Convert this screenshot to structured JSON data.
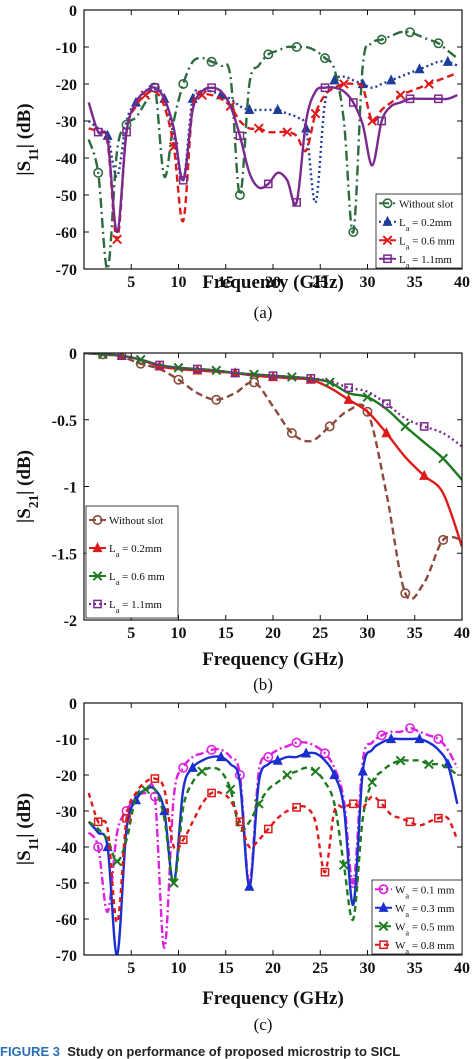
{
  "caption": {
    "label": "FIGURE 3",
    "text": "Study on performance of proposed microstrip to SICL"
  },
  "chart_data": [
    {
      "type": "line",
      "panel_label": "(a)",
      "xlabel": "Frequency (GHz)",
      "ylabel": "|S11| (dB)",
      "xlim": [
        0,
        40
      ],
      "ylim": [
        -70,
        0
      ],
      "xticks": [
        5,
        10,
        15,
        20,
        25,
        30,
        35,
        40
      ],
      "yticks": [
        0,
        -10,
        -20,
        -30,
        -40,
        -50,
        -60,
        -70
      ],
      "grid": false,
      "legend_position": "bottom-right",
      "series": [
        {
          "name": "Without slot",
          "color": "#2e6b3e",
          "dash": "10,4,2,4",
          "marker": "circle",
          "x": [
            0.5,
            1.5,
            2.5,
            3.5,
            4.5,
            5.5,
            6.5,
            7.5,
            8.5,
            9.5,
            10.5,
            11.5,
            12.5,
            13.5,
            14.5,
            15.5,
            16.5,
            17.5,
            18.5,
            19.5,
            20.5,
            21.5,
            22.5,
            23.5,
            24.5,
            25.5,
            26.5,
            27.5,
            28.5,
            29.5,
            30.5,
            31.5,
            32.5,
            33.5,
            34.5,
            35.5,
            36.5,
            37.5,
            38.5,
            39.5
          ],
          "y": [
            -35,
            -44,
            -70,
            -38,
            -31,
            -29,
            -25,
            -21,
            -45,
            -30,
            -20,
            -14,
            -13,
            -14,
            -15,
            -18,
            -50,
            -20,
            -15,
            -12,
            -11,
            -10,
            -10,
            -10,
            -11,
            -13,
            -16,
            -30,
            -60,
            -15,
            -9,
            -8,
            -7,
            -6,
            -6,
            -7,
            -8,
            -9,
            -11,
            -13
          ]
        },
        {
          "name": "L_a = 0.2mm",
          "color": "#1f3d99",
          "dash": "2,3",
          "marker": "triangle",
          "x": [
            0.5,
            1.5,
            2.5,
            3.5,
            4.5,
            5.5,
            6.5,
            7.5,
            8.5,
            9.5,
            10.5,
            11.5,
            12.5,
            13.5,
            14.5,
            15.5,
            16.5,
            17.5,
            18.5,
            19.5,
            20.5,
            21.5,
            22.5,
            23.5,
            24.5,
            25.5,
            26.5,
            27.5,
            28.5,
            29.5,
            30.5,
            31.5,
            32.5,
            33.5,
            34.5,
            35.5,
            36.5,
            37.5,
            38.5,
            39.5
          ],
          "y": [
            -30,
            -32,
            -34,
            -45,
            -30,
            -25,
            -22,
            -20,
            -24,
            -34,
            -46,
            -24,
            -22,
            -22,
            -23,
            -24,
            -26,
            -27,
            -27,
            -27,
            -27,
            -28,
            -29,
            -32,
            -52,
            -25,
            -19,
            -18,
            -19,
            -20,
            -21,
            -20,
            -19,
            -18,
            -17,
            -16,
            -15,
            -14,
            -14,
            -15
          ]
        },
        {
          "name": "L_a = 0.6 mm",
          "color": "#dd1a1a",
          "dash": "7,4",
          "marker": "x",
          "x": [
            0.5,
            1.5,
            2.5,
            3.5,
            4.5,
            5.5,
            6.5,
            7.5,
            8.5,
            9.5,
            10.5,
            11.5,
            12.5,
            13.5,
            14.5,
            15.5,
            16.5,
            17.5,
            18.5,
            19.5,
            20.5,
            21.5,
            22.5,
            23.5,
            24.5,
            25.5,
            26.5,
            27.5,
            28.5,
            29.5,
            30.5,
            31.5,
            32.5,
            33.5,
            34.5,
            35.5,
            36.5,
            37.5,
            38.5,
            39.5
          ],
          "y": [
            -32,
            -33,
            -36,
            -62,
            -33,
            -26,
            -23,
            -22,
            -26,
            -37,
            -57,
            -26,
            -23,
            -23,
            -24,
            -26,
            -30,
            -32,
            -32,
            -33,
            -33,
            -33,
            -34,
            -38,
            -28,
            -23,
            -21,
            -20,
            -20,
            -21,
            -30,
            -27,
            -25,
            -23,
            -22,
            -21,
            -20,
            -19,
            -18,
            -17
          ]
        },
        {
          "name": "L_a = 1.1mm",
          "color": "#7a2a8e",
          "dash": "",
          "marker": "square",
          "x": [
            0.5,
            1.5,
            2.5,
            3.5,
            4.5,
            5.5,
            6.5,
            7.5,
            8.5,
            9.5,
            10.5,
            11.5,
            12.5,
            13.5,
            14.5,
            15.5,
            16.5,
            17.5,
            18.5,
            19.5,
            20.5,
            21.5,
            22.5,
            23.5,
            24.5,
            25.5,
            26.5,
            27.5,
            28.5,
            29.5,
            30.5,
            31.5,
            32.5,
            33.5,
            34.5,
            35.5,
            36.5,
            37.5,
            38.5,
            39.5
          ],
          "y": [
            -25,
            -33,
            -35,
            -60,
            -33,
            -25,
            -22,
            -21,
            -24,
            -32,
            -46,
            -27,
            -22,
            -21,
            -22,
            -26,
            -34,
            -44,
            -48,
            -47,
            -44,
            -46,
            -52,
            -30,
            -22,
            -21,
            -21,
            -22,
            -25,
            -31,
            -42,
            -30,
            -26,
            -25,
            -24,
            -24,
            -24,
            -24,
            -24,
            -23
          ]
        }
      ]
    },
    {
      "type": "line",
      "panel_label": "(b)",
      "xlabel": "Frequency (GHz)",
      "ylabel": "|S21| (dB)",
      "xlim": [
        0,
        40
      ],
      "ylim": [
        -2,
        0
      ],
      "xticks": [
        5,
        10,
        15,
        20,
        25,
        30,
        35,
        40
      ],
      "yticks": [
        0,
        -0.5,
        -1,
        -1.5,
        -2
      ],
      "ytick_labels": [
        "0",
        "-0.5",
        "-1",
        "-1.5",
        "-2"
      ],
      "grid": false,
      "legend_position": "bottom-left",
      "series": [
        {
          "name": "Without slot",
          "color": "#8b4a3c",
          "dash": "7,4",
          "marker": "circle",
          "x": [
            0,
            2,
            4,
            6,
            8,
            10,
            12,
            14,
            16,
            18,
            20,
            22,
            24,
            26,
            28,
            30,
            32,
            34,
            36,
            38,
            40
          ],
          "y": [
            0,
            -0.01,
            -0.03,
            -0.08,
            -0.12,
            -0.2,
            -0.3,
            -0.35,
            -0.3,
            -0.22,
            -0.4,
            -0.6,
            -0.66,
            -0.55,
            -0.43,
            -0.44,
            -1.05,
            -1.8,
            -1.72,
            -1.4,
            -1.4
          ]
        },
        {
          "name": "L_a = 0.2mm",
          "color": "#dd1a1a",
          "dash": "",
          "marker": "triangle",
          "x": [
            0,
            2,
            4,
            6,
            8,
            10,
            12,
            14,
            16,
            18,
            20,
            22,
            24,
            26,
            28,
            30,
            32,
            34,
            36,
            38,
            40
          ],
          "y": [
            0,
            -0.01,
            -0.02,
            -0.05,
            -0.1,
            -0.12,
            -0.13,
            -0.14,
            -0.15,
            -0.17,
            -0.18,
            -0.19,
            -0.2,
            -0.26,
            -0.35,
            -0.44,
            -0.6,
            -0.78,
            -0.92,
            -1.05,
            -1.45
          ]
        },
        {
          "name": "L_a = 0.6 mm",
          "color": "#1e7a1e",
          "dash": "",
          "marker": "x",
          "x": [
            0,
            2,
            4,
            6,
            8,
            10,
            12,
            14,
            16,
            18,
            20,
            22,
            24,
            26,
            28,
            30,
            32,
            34,
            36,
            38,
            40
          ],
          "y": [
            0,
            -0.01,
            -0.02,
            -0.05,
            -0.09,
            -0.11,
            -0.12,
            -0.13,
            -0.15,
            -0.16,
            -0.17,
            -0.18,
            -0.19,
            -0.22,
            -0.3,
            -0.33,
            -0.42,
            -0.55,
            -0.67,
            -0.79,
            -0.95
          ]
        },
        {
          "name": "L_a = 1.1mm",
          "color": "#7a2a8e",
          "dash": "2,3",
          "marker": "square",
          "x": [
            0,
            2,
            4,
            6,
            8,
            10,
            12,
            14,
            16,
            18,
            20,
            22,
            24,
            26,
            28,
            30,
            32,
            34,
            36,
            38,
            40
          ],
          "y": [
            0,
            -0.01,
            -0.02,
            -0.05,
            -0.09,
            -0.11,
            -0.12,
            -0.13,
            -0.15,
            -0.16,
            -0.17,
            -0.18,
            -0.19,
            -0.21,
            -0.26,
            -0.29,
            -0.38,
            -0.49,
            -0.55,
            -0.6,
            -0.7
          ]
        }
      ]
    },
    {
      "type": "line",
      "panel_label": "(c)",
      "xlabel": "Frequency (GHz)",
      "ylabel": "|S11| (dB)",
      "xlim": [
        0,
        40
      ],
      "ylim": [
        -70,
        0
      ],
      "xticks": [
        5,
        10,
        15,
        20,
        25,
        30,
        35,
        40
      ],
      "yticks": [
        0,
        -10,
        -20,
        -30,
        -40,
        -50,
        -60,
        -70
      ],
      "grid": false,
      "legend_position": "bottom-right",
      "series": [
        {
          "name": "W_a = 0.1 mm",
          "color": "#e020e0",
          "dash": "8,3,2,3",
          "marker": "circle",
          "x": [
            0.5,
            1.5,
            2.5,
            3.5,
            4.5,
            5.5,
            6.5,
            7.5,
            8.5,
            9.5,
            10.5,
            11.5,
            12.5,
            13.5,
            14.5,
            15.5,
            16.5,
            17.5,
            18.5,
            19.5,
            20.5,
            21.5,
            22.5,
            23.5,
            24.5,
            25.5,
            26.5,
            27.5,
            28.5,
            29.5,
            30.5,
            31.5,
            32.5,
            33.5,
            34.5,
            35.5,
            36.5,
            37.5,
            38.5,
            39.5
          ],
          "y": [
            -36,
            -40,
            -58,
            -36,
            -30,
            -26,
            -25,
            -26,
            -68,
            -26,
            -18,
            -15,
            -14,
            -13,
            -13,
            -15,
            -20,
            -50,
            -19,
            -15,
            -13,
            -12,
            -11,
            -11,
            -12,
            -14,
            -18,
            -27,
            -50,
            -16,
            -11,
            -9,
            -8,
            -8,
            -7,
            -8,
            -9,
            -10,
            -13,
            -18
          ]
        },
        {
          "name": "W_a = 0.3 mm",
          "color": "#1a2fd0",
          "dash": "",
          "marker": "triangle",
          "x": [
            0.5,
            1.5,
            2.5,
            3.5,
            4.5,
            5.5,
            6.5,
            7.5,
            8.5,
            9.5,
            10.5,
            11.5,
            12.5,
            13.5,
            14.5,
            15.5,
            16.5,
            17.5,
            18.5,
            19.5,
            20.5,
            21.5,
            22.5,
            23.5,
            24.5,
            25.5,
            26.5,
            27.5,
            28.5,
            29.5,
            30.5,
            31.5,
            32.5,
            33.5,
            34.5,
            35.5,
            36.5,
            37.5,
            38.5,
            39.5
          ],
          "y": [
            -33,
            -36,
            -40,
            -70,
            -35,
            -27,
            -24,
            -24,
            -30,
            -50,
            -24,
            -18,
            -16,
            -15,
            -15,
            -17,
            -22,
            -51,
            -22,
            -17,
            -16,
            -15,
            -15,
            -14,
            -14,
            -16,
            -20,
            -29,
            -56,
            -19,
            -13,
            -11,
            -10,
            -10,
            -10,
            -10,
            -11,
            -13,
            -17,
            -28
          ]
        },
        {
          "name": "W_a = 0.5 mm",
          "color": "#1e7a1e",
          "dash": "6,4",
          "marker": "x",
          "x": [
            0.5,
            1.5,
            2.5,
            3.5,
            4.5,
            5.5,
            6.5,
            7.5,
            8.5,
            9.5,
            10.5,
            11.5,
            12.5,
            13.5,
            14.5,
            15.5,
            16.5,
            17.5,
            18.5,
            19.5,
            20.5,
            21.5,
            22.5,
            23.5,
            24.5,
            25.5,
            26.5,
            27.5,
            28.5,
            29.5,
            30.5,
            31.5,
            32.5,
            33.5,
            34.5,
            35.5,
            36.5,
            37.5,
            38.5,
            39.5
          ],
          "y": [
            -33,
            -35,
            -38,
            -44,
            -38,
            -26,
            -24,
            -24,
            -32,
            -50,
            -29,
            -22,
            -19,
            -18,
            -19,
            -24,
            -35,
            -33,
            -28,
            -24,
            -22,
            -20,
            -19,
            -18,
            -19,
            -22,
            -28,
            -45,
            -60,
            -32,
            -22,
            -19,
            -17,
            -16,
            -16,
            -16,
            -17,
            -17,
            -18,
            -20
          ]
        },
        {
          "name": "W_a = 0.8 mm",
          "color": "#dd1a1a",
          "dash": "5,4",
          "marker": "square",
          "x": [
            0.5,
            1.5,
            2.5,
            3.5,
            4.5,
            5.5,
            6.5,
            7.5,
            8.5,
            9.5,
            10.5,
            11.5,
            12.5,
            13.5,
            14.5,
            15.5,
            16.5,
            17.5,
            18.5,
            19.5,
            20.5,
            21.5,
            22.5,
            23.5,
            24.5,
            25.5,
            26.5,
            27.5,
            28.5,
            29.5,
            30.5,
            31.5,
            32.5,
            33.5,
            34.5,
            35.5,
            36.5,
            37.5,
            38.5,
            39.5
          ],
          "y": [
            -25,
            -33,
            -35,
            -61,
            -32,
            -25,
            -22,
            -21,
            -24,
            -40,
            -38,
            -33,
            -28,
            -25,
            -25,
            -27,
            -33,
            -40,
            -38,
            -35,
            -32,
            -30,
            -29,
            -29,
            -33,
            -47,
            -30,
            -29,
            -28,
            -29,
            -26,
            -28,
            -31,
            -32,
            -33,
            -34,
            -33,
            -32,
            -32,
            -38
          ]
        }
      ]
    }
  ]
}
